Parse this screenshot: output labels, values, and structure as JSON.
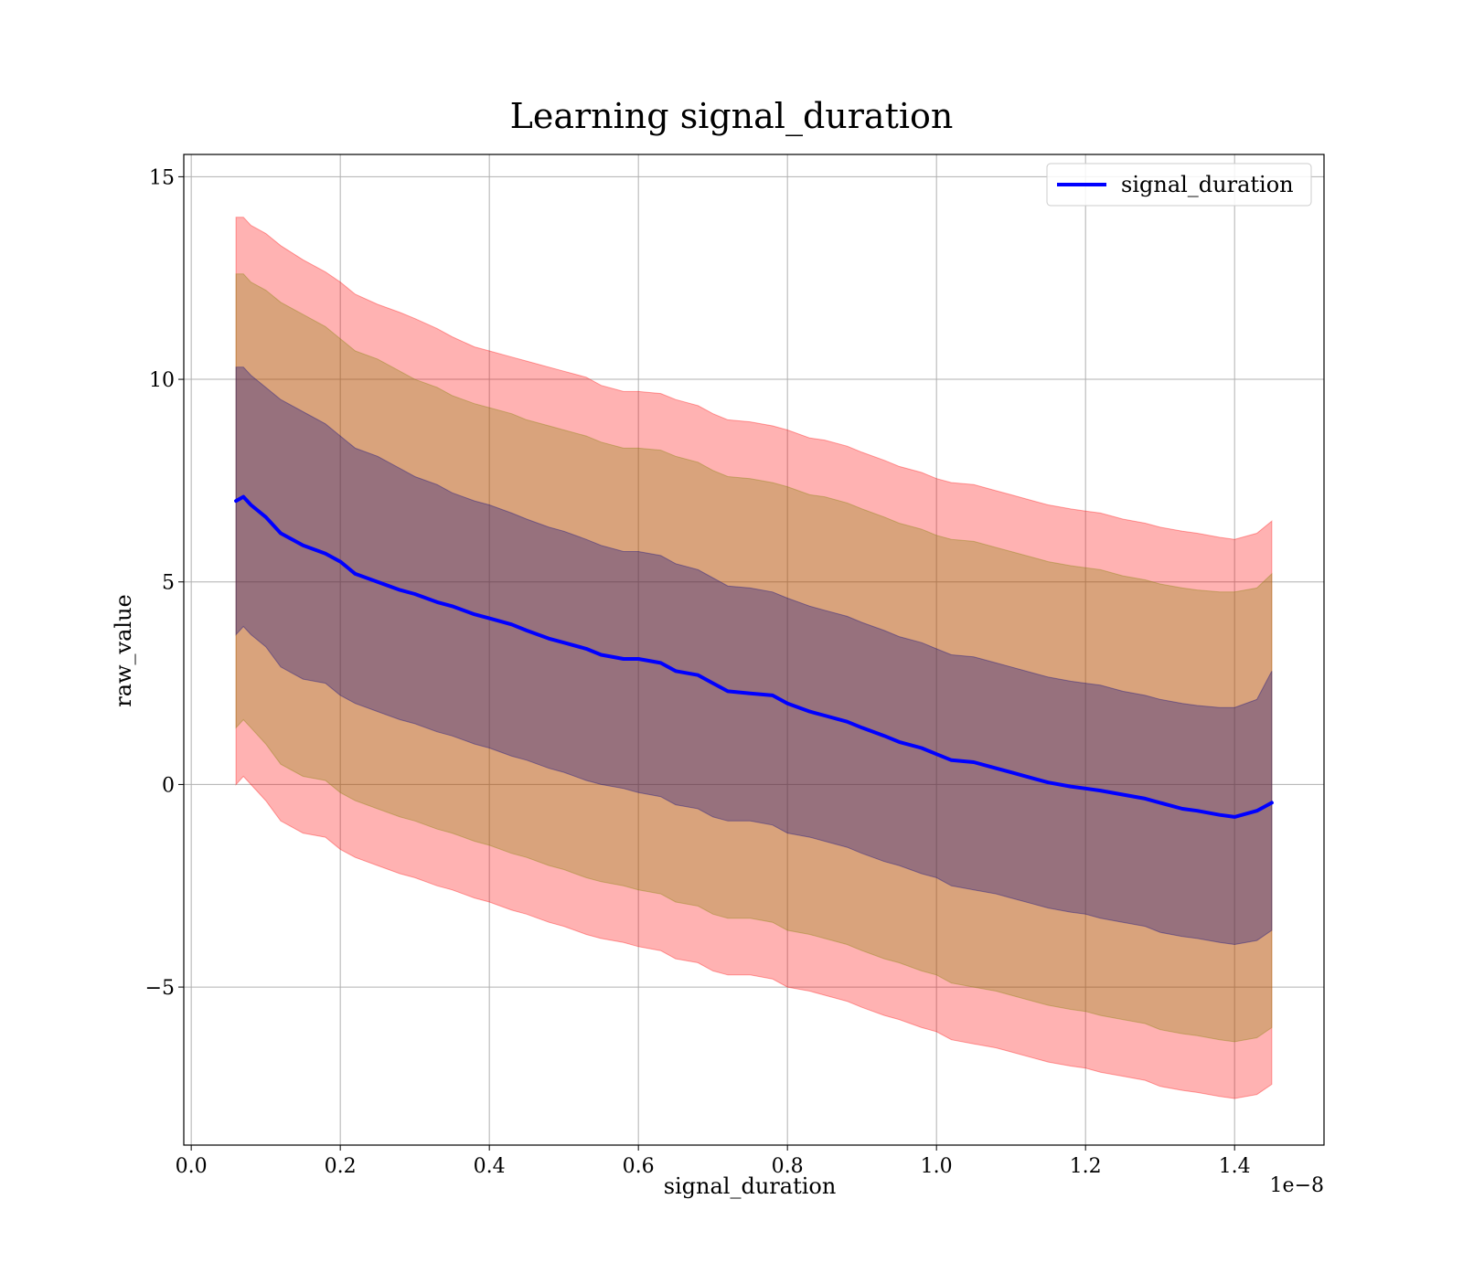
{
  "chart_data": {
    "type": "line",
    "title": "Learning signal_duration",
    "xlabel": "signal_duration",
    "ylabel": "raw_value",
    "x_offset_label": "1e−8",
    "x_scale_exponent": -8,
    "xlim": [
      -0.01,
      1.52
    ],
    "ylim": [
      -8.9,
      15.55
    ],
    "xticks": [
      0.0,
      0.2,
      0.4,
      0.6,
      0.8,
      1.0,
      1.2,
      1.4
    ],
    "xtick_labels": [
      "0.0",
      "0.2",
      "0.4",
      "0.6",
      "0.8",
      "1.0",
      "1.2",
      "1.4"
    ],
    "yticks": [
      -5,
      0,
      5,
      10,
      15
    ],
    "ytick_labels": [
      "−5",
      "0",
      "5",
      "10",
      "15"
    ],
    "grid": true,
    "legend_position": "top-right",
    "series": [
      {
        "name": "signal_duration",
        "color": "#0000ff",
        "x": [
          0.06,
          0.07,
          0.08,
          0.1,
          0.12,
          0.15,
          0.18,
          0.2,
          0.22,
          0.25,
          0.28,
          0.3,
          0.33,
          0.35,
          0.38,
          0.4,
          0.43,
          0.45,
          0.48,
          0.5,
          0.53,
          0.55,
          0.58,
          0.6,
          0.63,
          0.65,
          0.68,
          0.7,
          0.72,
          0.75,
          0.78,
          0.8,
          0.83,
          0.85,
          0.88,
          0.9,
          0.93,
          0.95,
          0.98,
          1.0,
          1.02,
          1.05,
          1.08,
          1.1,
          1.13,
          1.15,
          1.18,
          1.2,
          1.22,
          1.25,
          1.28,
          1.3,
          1.33,
          1.35,
          1.38,
          1.4,
          1.43,
          1.45
        ],
        "y": [
          7.0,
          7.1,
          6.9,
          6.6,
          6.2,
          5.9,
          5.7,
          5.5,
          5.2,
          5.0,
          4.8,
          4.7,
          4.5,
          4.4,
          4.2,
          4.1,
          3.95,
          3.8,
          3.6,
          3.5,
          3.35,
          3.2,
          3.1,
          3.1,
          3.0,
          2.8,
          2.7,
          2.5,
          2.3,
          2.25,
          2.2,
          2.0,
          1.8,
          1.7,
          1.55,
          1.4,
          1.2,
          1.05,
          0.9,
          0.75,
          0.6,
          0.55,
          0.4,
          0.3,
          0.15,
          0.05,
          -0.05,
          -0.1,
          -0.15,
          -0.25,
          -0.35,
          -0.45,
          -0.6,
          -0.65,
          -0.75,
          -0.8,
          -0.65,
          -0.45
        ]
      }
    ],
    "bands": [
      {
        "color": "#ff0000",
        "opacity": 0.3,
        "upper": [
          14.0,
          14.0,
          13.8,
          13.6,
          13.3,
          12.95,
          12.65,
          12.4,
          12.1,
          11.85,
          11.65,
          11.5,
          11.25,
          11.05,
          10.8,
          10.7,
          10.55,
          10.45,
          10.3,
          10.2,
          10.05,
          9.85,
          9.7,
          9.7,
          9.65,
          9.5,
          9.35,
          9.15,
          9.0,
          8.95,
          8.85,
          8.75,
          8.55,
          8.5,
          8.35,
          8.2,
          8.0,
          7.85,
          7.7,
          7.55,
          7.45,
          7.4,
          7.25,
          7.15,
          7.0,
          6.9,
          6.8,
          6.75,
          6.7,
          6.55,
          6.45,
          6.35,
          6.25,
          6.2,
          6.1,
          6.05,
          6.2,
          6.5
        ],
        "lower": [
          0.0,
          0.2,
          0.0,
          -0.4,
          -0.9,
          -1.2,
          -1.3,
          -1.6,
          -1.8,
          -2.0,
          -2.2,
          -2.3,
          -2.5,
          -2.6,
          -2.8,
          -2.9,
          -3.1,
          -3.2,
          -3.4,
          -3.5,
          -3.7,
          -3.8,
          -3.9,
          -4.0,
          -4.1,
          -4.3,
          -4.4,
          -4.6,
          -4.7,
          -4.7,
          -4.8,
          -5.0,
          -5.1,
          -5.2,
          -5.35,
          -5.5,
          -5.7,
          -5.8,
          -6.0,
          -6.1,
          -6.3,
          -6.4,
          -6.5,
          -6.6,
          -6.75,
          -6.85,
          -6.95,
          -7.0,
          -7.1,
          -7.2,
          -7.3,
          -7.45,
          -7.55,
          -7.6,
          -7.7,
          -7.75,
          -7.65,
          -7.4
        ]
      },
      {
        "color": "#808000",
        "opacity": 0.3,
        "upper": [
          12.6,
          12.6,
          12.4,
          12.2,
          11.9,
          11.6,
          11.3,
          11.0,
          10.7,
          10.5,
          10.2,
          10.0,
          9.8,
          9.6,
          9.4,
          9.3,
          9.15,
          9.0,
          8.85,
          8.75,
          8.6,
          8.45,
          8.3,
          8.3,
          8.25,
          8.1,
          7.95,
          7.75,
          7.6,
          7.55,
          7.45,
          7.35,
          7.15,
          7.1,
          6.95,
          6.8,
          6.6,
          6.45,
          6.3,
          6.15,
          6.05,
          6.0,
          5.85,
          5.75,
          5.6,
          5.5,
          5.4,
          5.35,
          5.3,
          5.15,
          5.05,
          4.95,
          4.85,
          4.8,
          4.75,
          4.75,
          4.85,
          5.2
        ],
        "lower": [
          1.4,
          1.6,
          1.4,
          1.0,
          0.5,
          0.2,
          0.1,
          -0.2,
          -0.4,
          -0.6,
          -0.8,
          -0.9,
          -1.1,
          -1.2,
          -1.4,
          -1.5,
          -1.7,
          -1.8,
          -2.0,
          -2.1,
          -2.3,
          -2.4,
          -2.5,
          -2.6,
          -2.7,
          -2.9,
          -3.0,
          -3.2,
          -3.3,
          -3.3,
          -3.4,
          -3.6,
          -3.7,
          -3.8,
          -3.95,
          -4.1,
          -4.3,
          -4.4,
          -4.6,
          -4.7,
          -4.9,
          -5.0,
          -5.1,
          -5.2,
          -5.35,
          -5.45,
          -5.55,
          -5.6,
          -5.7,
          -5.8,
          -5.9,
          -6.05,
          -6.15,
          -6.2,
          -6.3,
          -6.35,
          -6.25,
          -6.0
        ]
      },
      {
        "color": "#000080",
        "opacity": 0.3,
        "upper": [
          10.3,
          10.3,
          10.1,
          9.8,
          9.5,
          9.2,
          8.9,
          8.6,
          8.3,
          8.1,
          7.8,
          7.6,
          7.4,
          7.2,
          7.0,
          6.9,
          6.7,
          6.55,
          6.35,
          6.25,
          6.05,
          5.9,
          5.75,
          5.75,
          5.65,
          5.45,
          5.3,
          5.1,
          4.9,
          4.85,
          4.75,
          4.6,
          4.4,
          4.3,
          4.15,
          4.0,
          3.8,
          3.65,
          3.5,
          3.35,
          3.2,
          3.15,
          3.0,
          2.9,
          2.75,
          2.65,
          2.55,
          2.5,
          2.45,
          2.3,
          2.2,
          2.1,
          2.0,
          1.95,
          1.9,
          1.9,
          2.1,
          2.8
        ],
        "lower": [
          3.7,
          3.9,
          3.7,
          3.4,
          2.9,
          2.6,
          2.5,
          2.2,
          2.0,
          1.8,
          1.6,
          1.5,
          1.3,
          1.2,
          1.0,
          0.9,
          0.7,
          0.6,
          0.4,
          0.3,
          0.1,
          0.0,
          -0.1,
          -0.2,
          -0.3,
          -0.5,
          -0.6,
          -0.8,
          -0.9,
          -0.9,
          -1.0,
          -1.2,
          -1.3,
          -1.4,
          -1.55,
          -1.7,
          -1.9,
          -2.0,
          -2.2,
          -2.3,
          -2.5,
          -2.6,
          -2.7,
          -2.8,
          -2.95,
          -3.05,
          -3.15,
          -3.2,
          -3.3,
          -3.4,
          -3.5,
          -3.65,
          -3.75,
          -3.8,
          -3.9,
          -3.95,
          -3.85,
          -3.6
        ]
      }
    ]
  }
}
